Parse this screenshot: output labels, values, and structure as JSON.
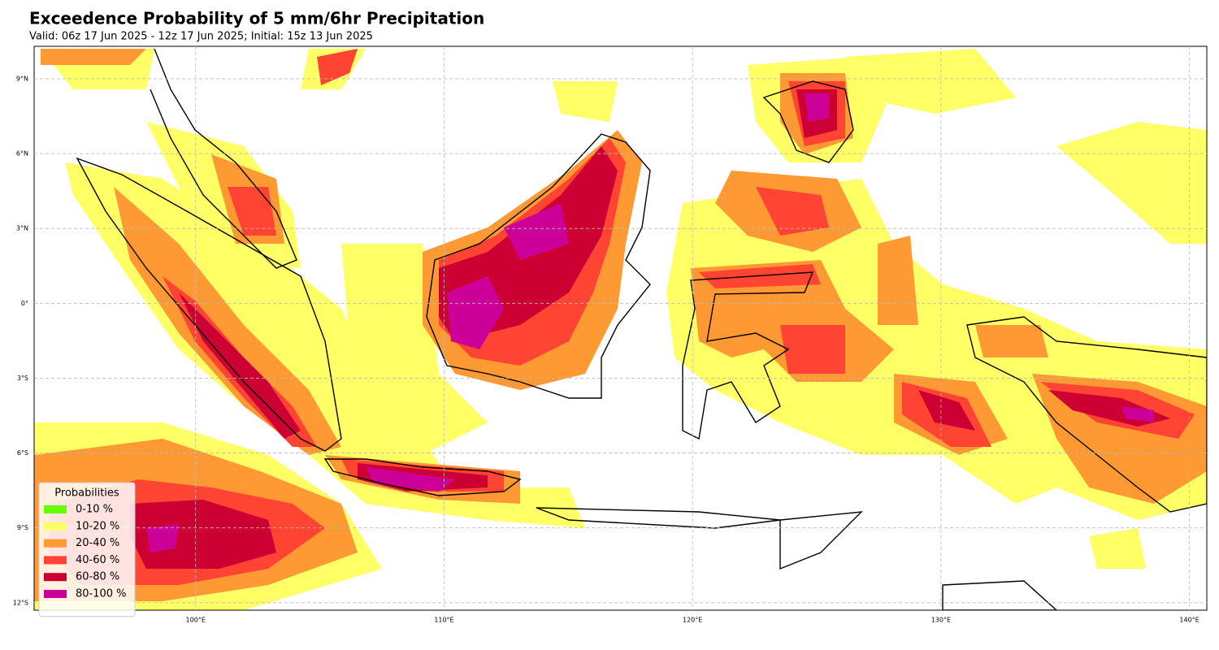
{
  "map": {
    "title": "Exceedence Probability of 5 mm/6hr Precipitation",
    "subtitle": "Valid: 06z 17 Jun 2025 - 12z 17 Jun 2025; Initial: 15z 13 Jun 2025",
    "xlim": [
      93.5,
      140.7
    ],
    "ylim": [
      -12.3,
      10.3
    ],
    "xticks": [
      {
        "value": 100,
        "label": "100°E"
      },
      {
        "value": 110,
        "label": "110°E"
      },
      {
        "value": 120,
        "label": "120°E"
      },
      {
        "value": 130,
        "label": "130°E"
      },
      {
        "value": 140,
        "label": "140°E"
      }
    ],
    "yticks": [
      {
        "value": -12,
        "label": "12°S"
      },
      {
        "value": -9,
        "label": "9°S"
      },
      {
        "value": -6,
        "label": "6°S"
      },
      {
        "value": -3,
        "label": "3°S"
      },
      {
        "value": 0,
        "label": "0°"
      },
      {
        "value": 3,
        "label": "3°N"
      },
      {
        "value": 6,
        "label": "6°N"
      },
      {
        "value": 9,
        "label": "9°N"
      }
    ],
    "grid": true,
    "legend": {
      "title": "Probabilities",
      "entries": [
        {
          "label": "0-10 %",
          "color": "#66ff00"
        },
        {
          "label": "10-20 %",
          "color": "#ffff66"
        },
        {
          "label": "20-40 %",
          "color": "#ff9933"
        },
        {
          "label": "40-60 %",
          "color": "#ff4433"
        },
        {
          "label": "60-80 %",
          "color": "#cc0033"
        },
        {
          "label": "80-100 %",
          "color": "#cc0099"
        }
      ]
    }
  }
}
